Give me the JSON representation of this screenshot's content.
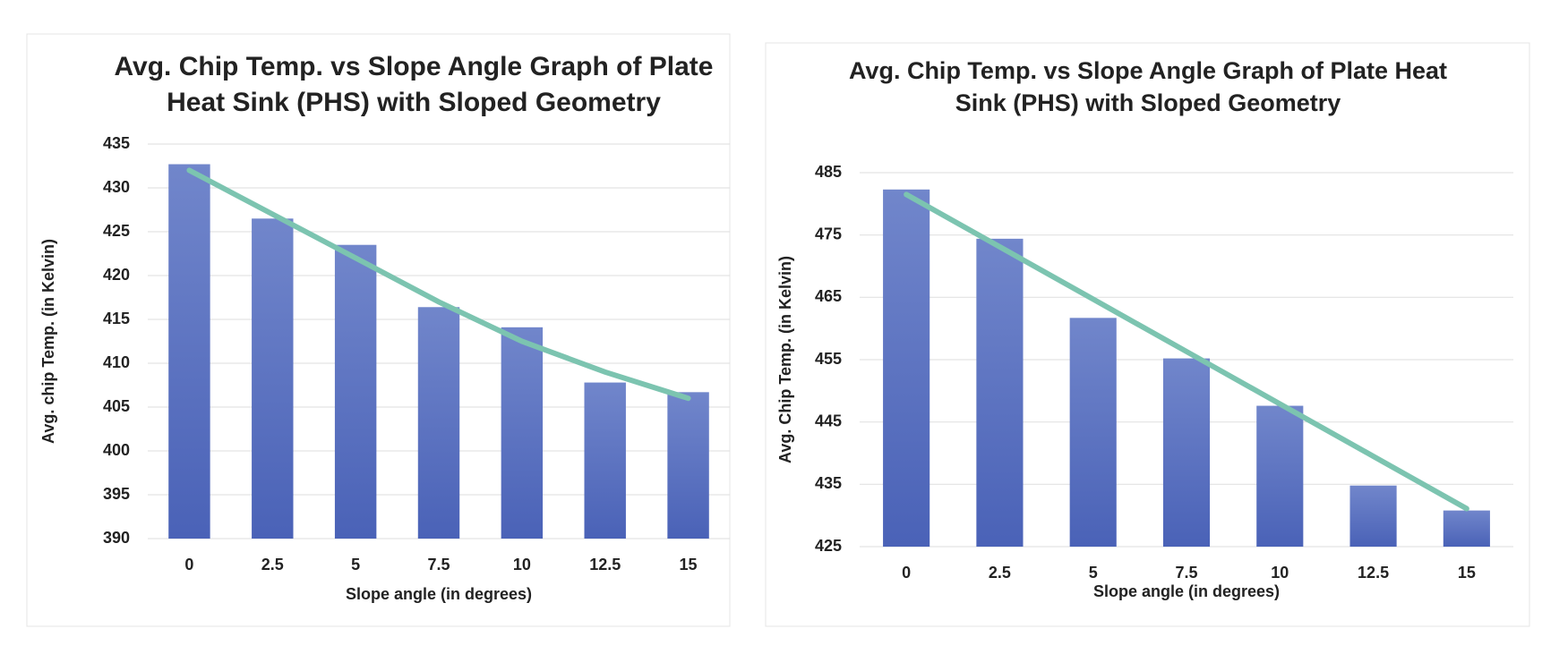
{
  "chart_data": [
    {
      "type": "bar",
      "title": [
        "Avg. Chip Temp. vs Slope Angle Graph of Plate",
        "Heat Sink (PHS) with Sloped Geometry"
      ],
      "x_label": "Slope angle (in degrees)",
      "y_label": "Avg. chip Temp. (in Kelvin)",
      "categories": [
        "0",
        "2.5",
        "5",
        "7.5",
        "10",
        "12.5",
        "15"
      ],
      "values": [
        432.7,
        426.5,
        423.5,
        416.4,
        414.1,
        407.8,
        406.7
      ],
      "color": "#5470c6",
      "trendline": {
        "color": "#7cc4b0",
        "values": [
          432,
          427,
          422,
          417,
          412.5,
          409,
          406
        ]
      },
      "ylim": [
        390,
        435
      ],
      "yticks": [
        390,
        395,
        400,
        405,
        410,
        415,
        420,
        425,
        430,
        435
      ],
      "grid": true
    },
    {
      "type": "bar",
      "title": [
        "Avg. Chip Temp. vs Slope Angle Graph of Plate Heat",
        "Sink (PHS) with Sloped Geometry"
      ],
      "x_label": "Slope angle (in degrees)",
      "y_label": "Avg. Chip Temp. (in Kelvin)",
      "categories": [
        "0",
        "2.5",
        "5",
        "7.5",
        "10",
        "12.5",
        "15"
      ],
      "values": [
        482.3,
        474.4,
        461.7,
        455.2,
        447.6,
        434.8,
        430.8
      ],
      "color": "#5470c6",
      "trendline": {
        "color": "#7cc4b0",
        "values": [
          481.5,
          473.1,
          464.7,
          456.3,
          447.9,
          439.5,
          431.1
        ]
      },
      "ylim": [
        425,
        485
      ],
      "yticks": [
        425,
        435,
        445,
        455,
        465,
        475,
        485
      ],
      "grid": true
    }
  ]
}
